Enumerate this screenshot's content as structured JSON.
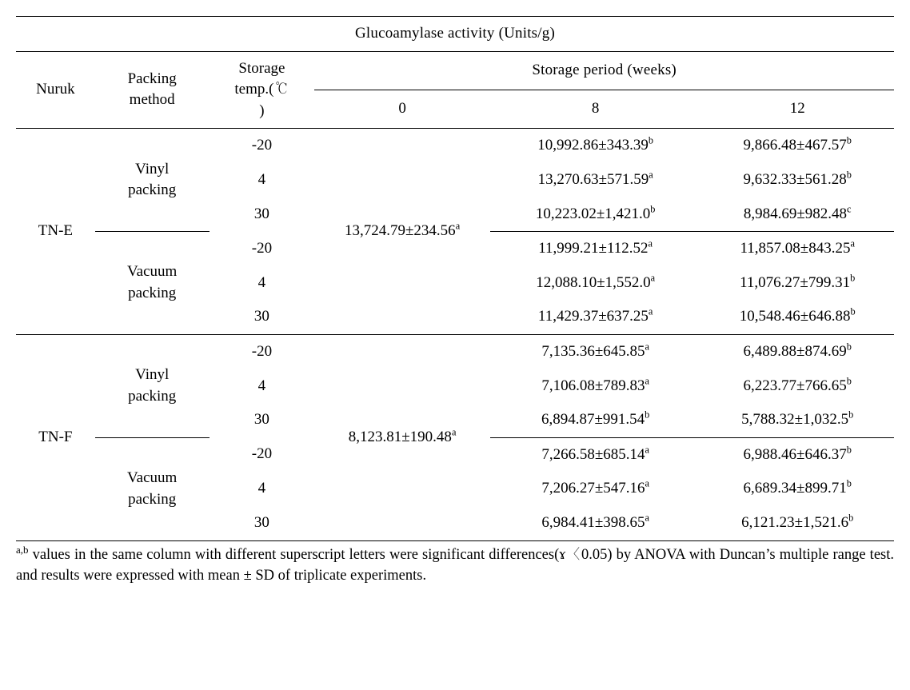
{
  "title": "Glucoamylase activity (Units/g)",
  "headers": {
    "nuruk": "Nuruk",
    "packing": "Packing method",
    "temp": "Storage temp.(℃)",
    "period_group": "Storage period (weeks)",
    "p0": "0",
    "p8": "8",
    "p12": "12"
  },
  "col_widths": {
    "nuruk": "9%",
    "packing": "13%",
    "temp": "12%",
    "p0": "20%",
    "p8": "24%",
    "p12": "22%"
  },
  "groups": [
    {
      "nuruk": "TN-E",
      "zero": "13,724.79±234.56",
      "zero_sup": "a",
      "packs": [
        {
          "method": "Vinyl packing",
          "rows": [
            {
              "temp": "-20",
              "w8": "10,992.86±343.39",
              "w8s": "b",
              "w12": "9,866.48±467.57",
              "w12s": "b"
            },
            {
              "temp": "4",
              "w8": "13,270.63±571.59",
              "w8s": "a",
              "w12": "9,632.33±561.28",
              "w12s": "b"
            },
            {
              "temp": "30",
              "w8": "10,223.02±1,421.0",
              "w8s": "b",
              "w12": "8,984.69±982.48",
              "w12s": "c"
            }
          ]
        },
        {
          "method": "Vacuum packing",
          "rows": [
            {
              "temp": "-20",
              "w8": "11,999.21±112.52",
              "w8s": "a",
              "w12": "11,857.08±843.25",
              "w12s": "a"
            },
            {
              "temp": "4",
              "w8": "12,088.10±1,552.0",
              "w8s": "a",
              "w12": "11,076.27±799.31",
              "w12s": "b"
            },
            {
              "temp": "30",
              "w8": "11,429.37±637.25",
              "w8s": "a",
              "w12": "10,548.46±646.88",
              "w12s": "b"
            }
          ]
        }
      ]
    },
    {
      "nuruk": "TN-F",
      "zero": "8,123.81±190.48",
      "zero_sup": "a",
      "packs": [
        {
          "method": "Vinyl packing",
          "rows": [
            {
              "temp": "-20",
              "w8": "7,135.36±645.85",
              "w8s": "a",
              "w12": "6,489.88±874.69",
              "w12s": "b"
            },
            {
              "temp": "4",
              "w8": "7,106.08±789.83",
              "w8s": "a",
              "w12": "6,223.77±766.65",
              "w12s": "b"
            },
            {
              "temp": "30",
              "w8": "6,894.87±991.54",
              "w8s": "b",
              "w12": "5,788.32±1,032.5",
              "w12s": "b"
            }
          ]
        },
        {
          "method": "Vacuum packing",
          "rows": [
            {
              "temp": "-20",
              "w8": "7,266.58±685.14",
              "w8s": "a",
              "w12": "6,988.46±646.37",
              "w12s": "b"
            },
            {
              "temp": "4",
              "w8": "7,206.27±547.16",
              "w8s": "a",
              "w12": "6,689.34±899.71",
              "w12s": "b"
            },
            {
              "temp": "30",
              "w8": "6,984.41±398.65",
              "w8s": "a",
              "w12": "6,121.23±1,521.6",
              "w12s": "b"
            }
          ]
        }
      ]
    }
  ],
  "footnote_sup": "a,b",
  "footnote": " values in the same column with different superscript letters were significant differences(ɤ〈0.05) by ANOVA with Duncan’s multiple range test. and results were expressed with mean ± SD of triplicate experiments."
}
